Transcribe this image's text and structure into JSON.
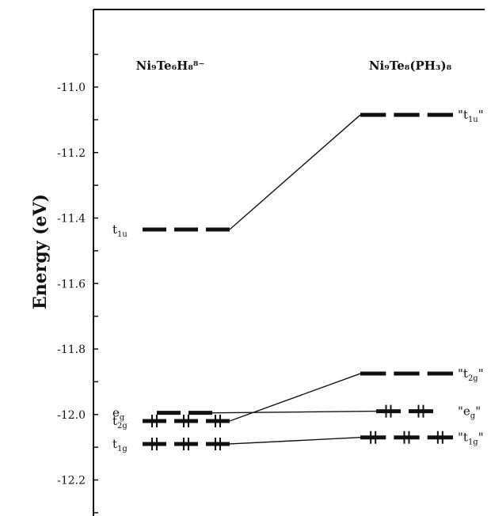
{
  "chart_data": {
    "type": "energy-level-diagram",
    "title": "",
    "ylabel": "Energy (eV)",
    "ylim": [
      -12.3,
      -10.78
    ],
    "y_ticks": [
      -11.0,
      -11.2,
      -11.4,
      -11.6,
      -11.8,
      -12.0,
      -12.2
    ],
    "y_tick_labels": [
      "-11.0",
      "-11.2",
      "-11.4",
      "-11.6",
      "-11.8",
      "-12.0",
      "-12.2"
    ],
    "grid": false,
    "columns": [
      {
        "id": "left",
        "title": "Ni₉Te₆H₈⁸⁻",
        "levels": [
          {
            "id": "t1u",
            "label": "t1u",
            "sym": "t",
            "sub": "1u",
            "energy": -11.435,
            "occupied": false,
            "segments": 3
          },
          {
            "id": "eg",
            "label": "eg",
            "sym": "e",
            "sub": "g",
            "energy": -11.995,
            "occupied": false,
            "segments": 2
          },
          {
            "id": "t2g",
            "label": "t2g",
            "sym": "t",
            "sub": "2g",
            "energy": -12.02,
            "occupied": true,
            "segments": 3
          },
          {
            "id": "t1g",
            "label": "t1g",
            "sym": "t",
            "sub": "1g",
            "energy": -12.09,
            "occupied": true,
            "segments": 3
          }
        ]
      },
      {
        "id": "right",
        "title": "Ni₉Te₈(PH₃)₈",
        "levels": [
          {
            "id": "t1u",
            "label": "\"t1u\"",
            "sym": "t",
            "sub": "1u",
            "energy": -11.085,
            "occupied": false,
            "segments": 3
          },
          {
            "id": "t2g",
            "label": "\"t2g\"",
            "sym": "t",
            "sub": "2g",
            "energy": -11.875,
            "occupied": false,
            "segments": 3
          },
          {
            "id": "eg",
            "label": "\"eg\"",
            "sym": "e",
            "sub": "g",
            "energy": -11.99,
            "occupied": true,
            "segments": 2
          },
          {
            "id": "t1g",
            "label": "\"t1g\"",
            "sym": "t",
            "sub": "1g",
            "energy": -12.07,
            "occupied": true,
            "segments": 3
          }
        ]
      }
    ],
    "correlations": [
      {
        "from": "t1u",
        "to": "t1u"
      },
      {
        "from": "t2g",
        "to": "t2g"
      },
      {
        "from": "eg",
        "to": "eg"
      },
      {
        "from": "t1g",
        "to": "t1g"
      }
    ]
  }
}
